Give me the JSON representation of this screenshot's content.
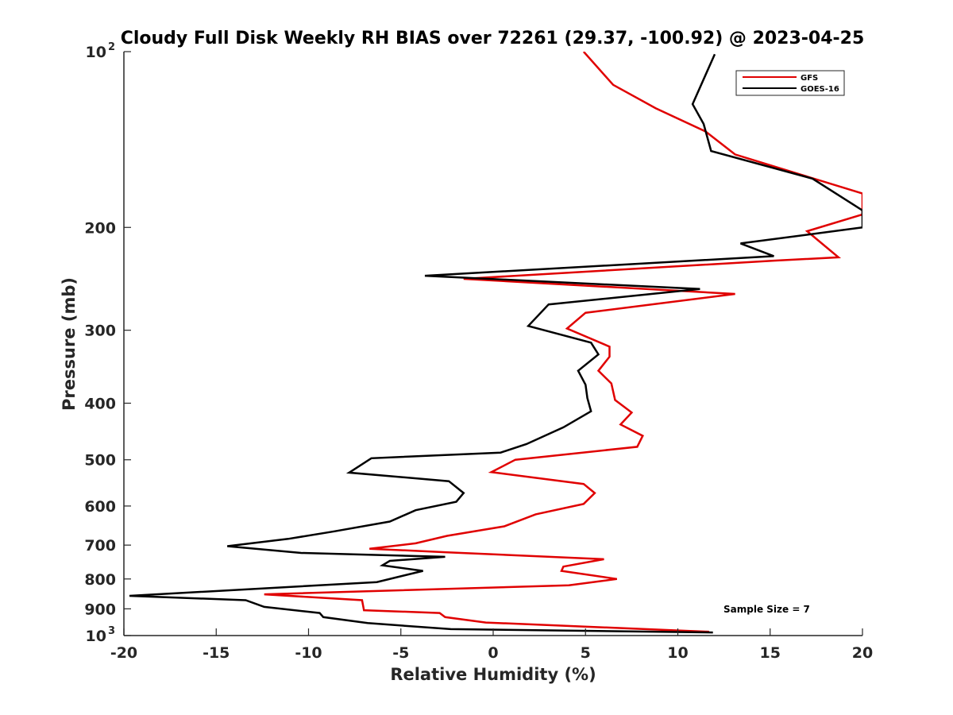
{
  "chart_data": {
    "type": "line",
    "title": "Cloudy Full Disk Weekly RH BIAS over 72261 (29.37, -100.92) @ 2023-04-25",
    "xlabel": "Relative Humidity (%)",
    "ylabel": "Pressure (mb)",
    "xlim": [
      -20,
      20
    ],
    "ylim": [
      100,
      1000
    ],
    "y_scale": "log",
    "y_reversed": true,
    "x_ticks": [
      "-20",
      "-15",
      "-10",
      "-5",
      "0",
      "5",
      "10",
      "15",
      "20"
    ],
    "y_ticks": [
      {
        "value": 100,
        "base": "10",
        "exp": "2"
      },
      {
        "value": 200,
        "label": "200"
      },
      {
        "value": 300,
        "label": "300"
      },
      {
        "value": 400,
        "label": "400"
      },
      {
        "value": 500,
        "label": "500"
      },
      {
        "value": 600,
        "label": "600"
      },
      {
        "value": 700,
        "label": "700"
      },
      {
        "value": 800,
        "label": "800"
      },
      {
        "value": 900,
        "label": "900"
      },
      {
        "value": 1000,
        "base": "10",
        "exp": "3"
      }
    ],
    "grid": false,
    "legend_position": "top-right",
    "series": [
      {
        "name": "GFS",
        "color": "#e00000",
        "x": [
          4.9,
          6.5,
          8.8,
          11.5,
          13.1,
          20,
          20,
          17,
          18.7,
          15.2,
          -1.6,
          13.1,
          5.0,
          4.0,
          6.3,
          6.3,
          5.7,
          6.4,
          6.6,
          7.5,
          6.9,
          8.1,
          7.8,
          1.2,
          -0.1,
          4.9,
          5.5,
          4.9,
          2.3,
          0.6,
          -2.5,
          -4.2,
          -6.7,
          -2.6,
          6.0,
          3.8,
          3.7,
          6.7,
          4.1,
          -12.4,
          -7.1,
          -7.0,
          -2.9,
          -2.6,
          -0.4,
          11.7
        ],
        "y": [
          100,
          114,
          125,
          137,
          150,
          175,
          190,
          203,
          225,
          228,
          245,
          260,
          280,
          298,
          320,
          333,
          352,
          370,
          395,
          415,
          435,
          455,
          475,
          500,
          525,
          550,
          570,
          595,
          620,
          650,
          675,
          695,
          710,
          720,
          740,
          762,
          775,
          800,
          820,
          850,
          870,
          905,
          915,
          930,
          950,
          985
        ]
      },
      {
        "name": "GOES-16",
        "color": "#000000",
        "x": [
          12.0,
          10.8,
          11.4,
          11.8,
          17.3,
          20,
          20,
          13.4,
          15.2,
          -3.7,
          11.2,
          3.0,
          1.9,
          5.3,
          5.7,
          4.6,
          5.0,
          5.1,
          5.3,
          3.8,
          1.8,
          0.4,
          -6.6,
          -7.8,
          -2.4,
          -1.6,
          -2.0,
          -4.2,
          -5.6,
          -8.6,
          -11.1,
          -14.4,
          -10.4,
          -2.6,
          -5.6,
          -6.0,
          -3.8,
          -6.3,
          -19.7,
          -13.4,
          -12.4,
          -9.4,
          -9.2,
          -6.8,
          -2.3,
          11.9
        ],
        "y": [
          101,
          123,
          133,
          148,
          165,
          187,
          200,
          213,
          224,
          242,
          255,
          271,
          295,
          315,
          330,
          352,
          372,
          392,
          413,
          440,
          470,
          486,
          497,
          526,
          544,
          570,
          590,
          610,
          638,
          663,
          683,
          703,
          722,
          733,
          745,
          758,
          775,
          810,
          855,
          870,
          893,
          915,
          930,
          952,
          975,
          988
        ]
      }
    ],
    "annotation": "Sample Size = 7"
  }
}
